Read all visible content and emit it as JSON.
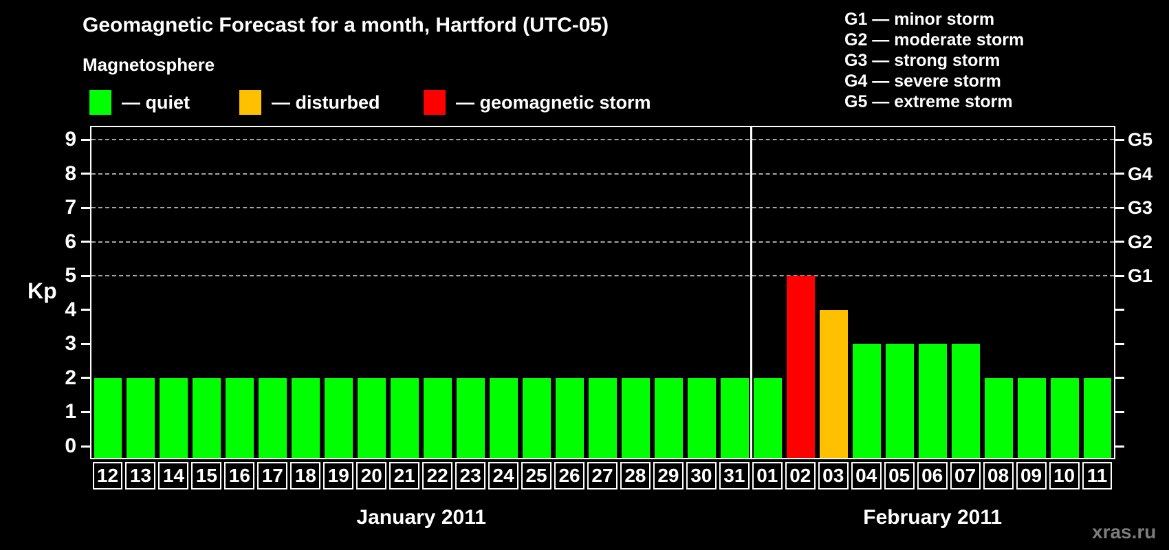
{
  "title": "Geomagnetic Forecast for a month, Hartford (UTC-05)",
  "magnetosphere_legend": {
    "heading": "Magnetosphere",
    "items": [
      {
        "name": "quiet",
        "label": "— quiet",
        "color": "#00ff00"
      },
      {
        "name": "disturbed",
        "label": "— disturbed",
        "color": "#ffc000"
      },
      {
        "name": "storm",
        "label": "— geomagnetic storm",
        "color": "#ff0000"
      }
    ]
  },
  "storm_scale_legend": {
    "items": [
      {
        "code": "G1",
        "label": "G1 — minor storm"
      },
      {
        "code": "G2",
        "label": "G2 — moderate storm"
      },
      {
        "code": "G3",
        "label": "G3 — strong storm"
      },
      {
        "code": "G4",
        "label": "G4 — severe storm"
      },
      {
        "code": "G5",
        "label": "G5 — extreme storm"
      }
    ]
  },
  "watermark": "xras.ru",
  "chart_data": {
    "type": "bar",
    "title": "Geomagnetic Forecast for a month, Hartford (UTC-05)",
    "xlabel": "",
    "ylabel": "Kp",
    "ylim": [
      0,
      9.4
    ],
    "yticks": [
      0,
      1,
      2,
      3,
      4,
      5,
      6,
      7,
      8,
      9
    ],
    "grid": "dashed horizontal lines at Kp 5-9 only",
    "gridlines_kp": [
      5,
      6,
      7,
      8,
      9
    ],
    "right_axis": [
      {
        "kp": 5,
        "label": "G1"
      },
      {
        "kp": 6,
        "label": "G2"
      },
      {
        "kp": 7,
        "label": "G3"
      },
      {
        "kp": 8,
        "label": "G4"
      },
      {
        "kp": 9,
        "label": "G5"
      }
    ],
    "color_map": {
      "quiet": "#00ff00",
      "disturbed": "#ffc000",
      "storm": "#ff0000"
    },
    "months": [
      {
        "label": "January 2011",
        "start_index": 0,
        "count": 20
      },
      {
        "label": "February 2011",
        "start_index": 20,
        "count": 11
      }
    ],
    "bars": [
      {
        "day": "12",
        "kp": 2,
        "status": "quiet"
      },
      {
        "day": "13",
        "kp": 2,
        "status": "quiet"
      },
      {
        "day": "14",
        "kp": 2,
        "status": "quiet"
      },
      {
        "day": "15",
        "kp": 2,
        "status": "quiet"
      },
      {
        "day": "16",
        "kp": 2,
        "status": "quiet"
      },
      {
        "day": "17",
        "kp": 2,
        "status": "quiet"
      },
      {
        "day": "18",
        "kp": 2,
        "status": "quiet"
      },
      {
        "day": "19",
        "kp": 2,
        "status": "quiet"
      },
      {
        "day": "20",
        "kp": 2,
        "status": "quiet"
      },
      {
        "day": "21",
        "kp": 2,
        "status": "quiet"
      },
      {
        "day": "22",
        "kp": 2,
        "status": "quiet"
      },
      {
        "day": "23",
        "kp": 2,
        "status": "quiet"
      },
      {
        "day": "24",
        "kp": 2,
        "status": "quiet"
      },
      {
        "day": "25",
        "kp": 2,
        "status": "quiet"
      },
      {
        "day": "26",
        "kp": 2,
        "status": "quiet"
      },
      {
        "day": "27",
        "kp": 2,
        "status": "quiet"
      },
      {
        "day": "28",
        "kp": 2,
        "status": "quiet"
      },
      {
        "day": "29",
        "kp": 2,
        "status": "quiet"
      },
      {
        "day": "30",
        "kp": 2,
        "status": "quiet"
      },
      {
        "day": "31",
        "kp": 2,
        "status": "quiet"
      },
      {
        "day": "01",
        "kp": 2,
        "status": "quiet"
      },
      {
        "day": "02",
        "kp": 5,
        "status": "storm"
      },
      {
        "day": "03",
        "kp": 4,
        "status": "disturbed"
      },
      {
        "day": "04",
        "kp": 3,
        "status": "quiet"
      },
      {
        "day": "05",
        "kp": 3,
        "status": "quiet"
      },
      {
        "day": "06",
        "kp": 3,
        "status": "quiet"
      },
      {
        "day": "07",
        "kp": 3,
        "status": "quiet"
      },
      {
        "day": "08",
        "kp": 2,
        "status": "quiet"
      },
      {
        "day": "09",
        "kp": 2,
        "status": "quiet"
      },
      {
        "day": "10",
        "kp": 2,
        "status": "quiet"
      },
      {
        "day": "11",
        "kp": 2,
        "status": "quiet"
      }
    ]
  }
}
